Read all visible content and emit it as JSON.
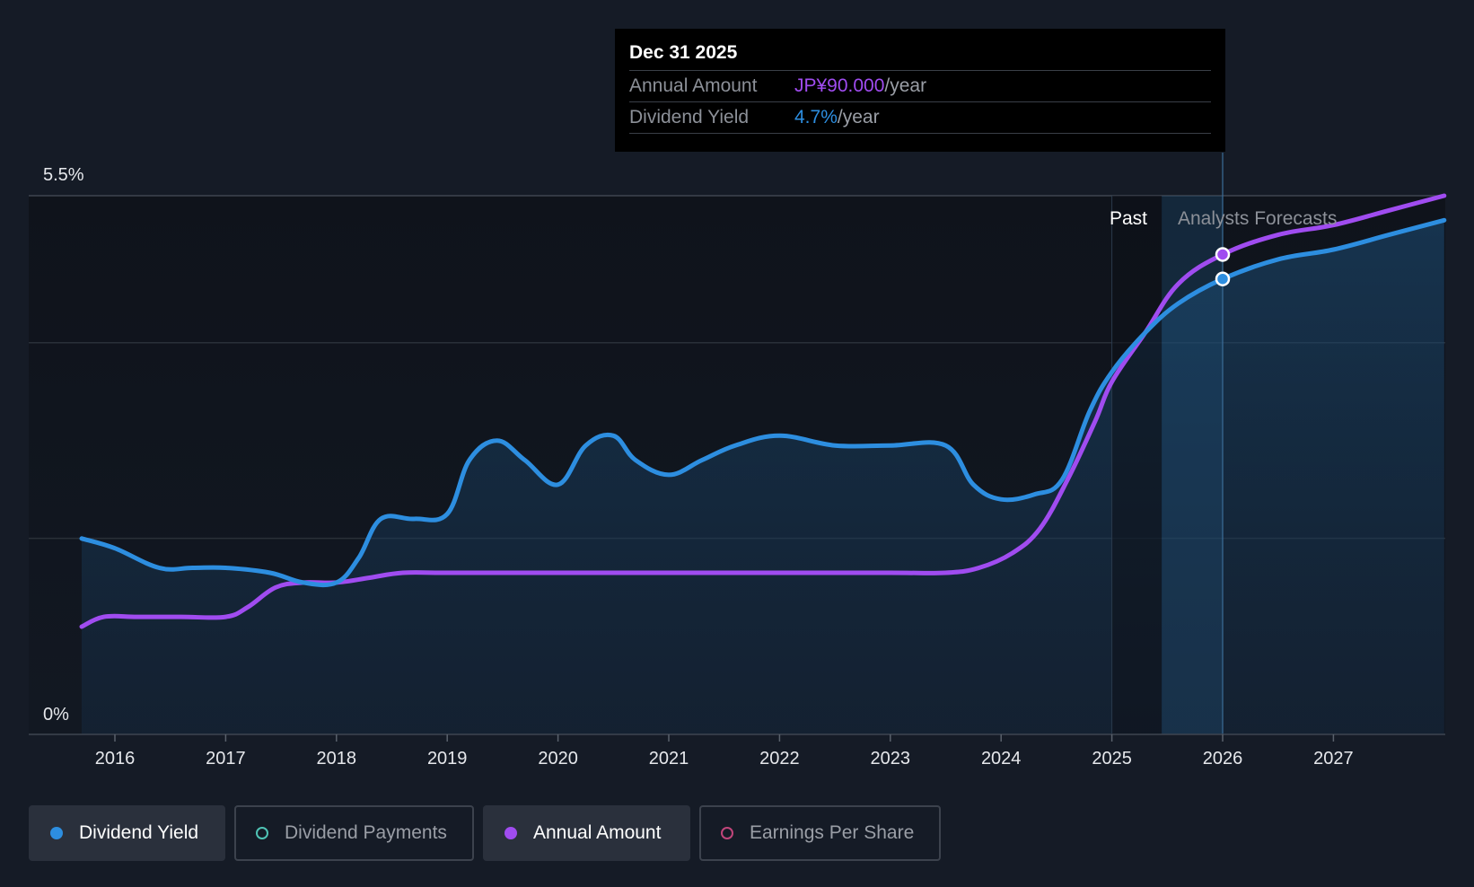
{
  "chart_data": {
    "type": "line",
    "title": "",
    "ylabel": "",
    "xlabel": "",
    "ylim": [
      0,
      5.5
    ],
    "y_tick_labels": [
      "5.5%",
      "0%"
    ],
    "x_ticks": [
      2016,
      2017,
      2018,
      2019,
      2020,
      2021,
      2022,
      2023,
      2024,
      2025,
      2026,
      2027
    ],
    "x_tick_labels": [
      "2016",
      "2017",
      "2018",
      "2019",
      "2020",
      "2021",
      "2022",
      "2023",
      "2024",
      "2025",
      "2026",
      "2027"
    ],
    "region_labels": {
      "past": "Past",
      "forecast": "Analysts Forecasts"
    },
    "series": [
      {
        "name": "Dividend Yield",
        "color": "#2d8ee0",
        "x": [
          2015.7,
          2016.0,
          2016.4,
          2016.7,
          2017.0,
          2017.4,
          2017.7,
          2018.0,
          2018.2,
          2018.4,
          2018.7,
          2019.0,
          2019.2,
          2019.45,
          2019.7,
          2020.0,
          2020.25,
          2020.5,
          2020.7,
          2021.0,
          2021.3,
          2021.6,
          2022.0,
          2022.5,
          2023.0,
          2023.5,
          2023.75,
          2024.0,
          2024.3,
          2024.55,
          2024.8,
          2025.0,
          2025.3,
          2025.6,
          2026.0,
          2026.5,
          2027.0,
          2027.5,
          2028.0
        ],
        "values": [
          2.0,
          1.9,
          1.7,
          1.7,
          1.7,
          1.65,
          1.55,
          1.55,
          1.8,
          2.2,
          2.2,
          2.25,
          2.8,
          3.0,
          2.8,
          2.55,
          2.95,
          3.05,
          2.8,
          2.65,
          2.8,
          2.95,
          3.05,
          2.95,
          2.95,
          2.95,
          2.55,
          2.4,
          2.45,
          2.6,
          3.3,
          3.7,
          4.1,
          4.4,
          4.65,
          4.85,
          4.95,
          5.1,
          5.25
        ]
      },
      {
        "name": "Annual Amount",
        "color": "#a04cf0",
        "x": [
          2015.7,
          2015.9,
          2016.2,
          2016.6,
          2017.0,
          2017.2,
          2017.45,
          2017.7,
          2018.0,
          2018.3,
          2018.6,
          2019.0,
          2020.0,
          2021.0,
          2022.0,
          2023.0,
          2023.5,
          2023.8,
          2024.1,
          2024.35,
          2024.6,
          2024.85,
          2025.0,
          2025.3,
          2025.6,
          2026.0,
          2026.5,
          2027.0,
          2027.5,
          2028.0
        ],
        "values": [
          1.1,
          1.2,
          1.2,
          1.2,
          1.2,
          1.3,
          1.5,
          1.55,
          1.55,
          1.6,
          1.65,
          1.65,
          1.65,
          1.65,
          1.65,
          1.65,
          1.65,
          1.7,
          1.85,
          2.1,
          2.6,
          3.2,
          3.6,
          4.1,
          4.6,
          4.9,
          5.1,
          5.2,
          5.35,
          5.5
        ]
      }
    ],
    "highlight": {
      "x": 2026.0,
      "label": "Dec 31 2025"
    }
  },
  "tooltip": {
    "date": "Dec 31 2025",
    "annual_amount_label": "Annual Amount",
    "annual_amount_value": "JP¥90.000",
    "annual_amount_unit": "/year",
    "dividend_yield_label": "Dividend Yield",
    "dividend_yield_value": "4.7%",
    "dividend_yield_unit": "/year"
  },
  "legend": {
    "dividend_yield": "Dividend Yield",
    "dividend_payments": "Dividend Payments",
    "annual_amount": "Annual Amount",
    "earnings_per_share": "Earnings Per Share"
  },
  "colors": {
    "background": "#151b26",
    "yield": "#2d8ee0",
    "annual": "#a04cf0",
    "payments": "#4fc3b5",
    "eps": "#c0457a"
  }
}
